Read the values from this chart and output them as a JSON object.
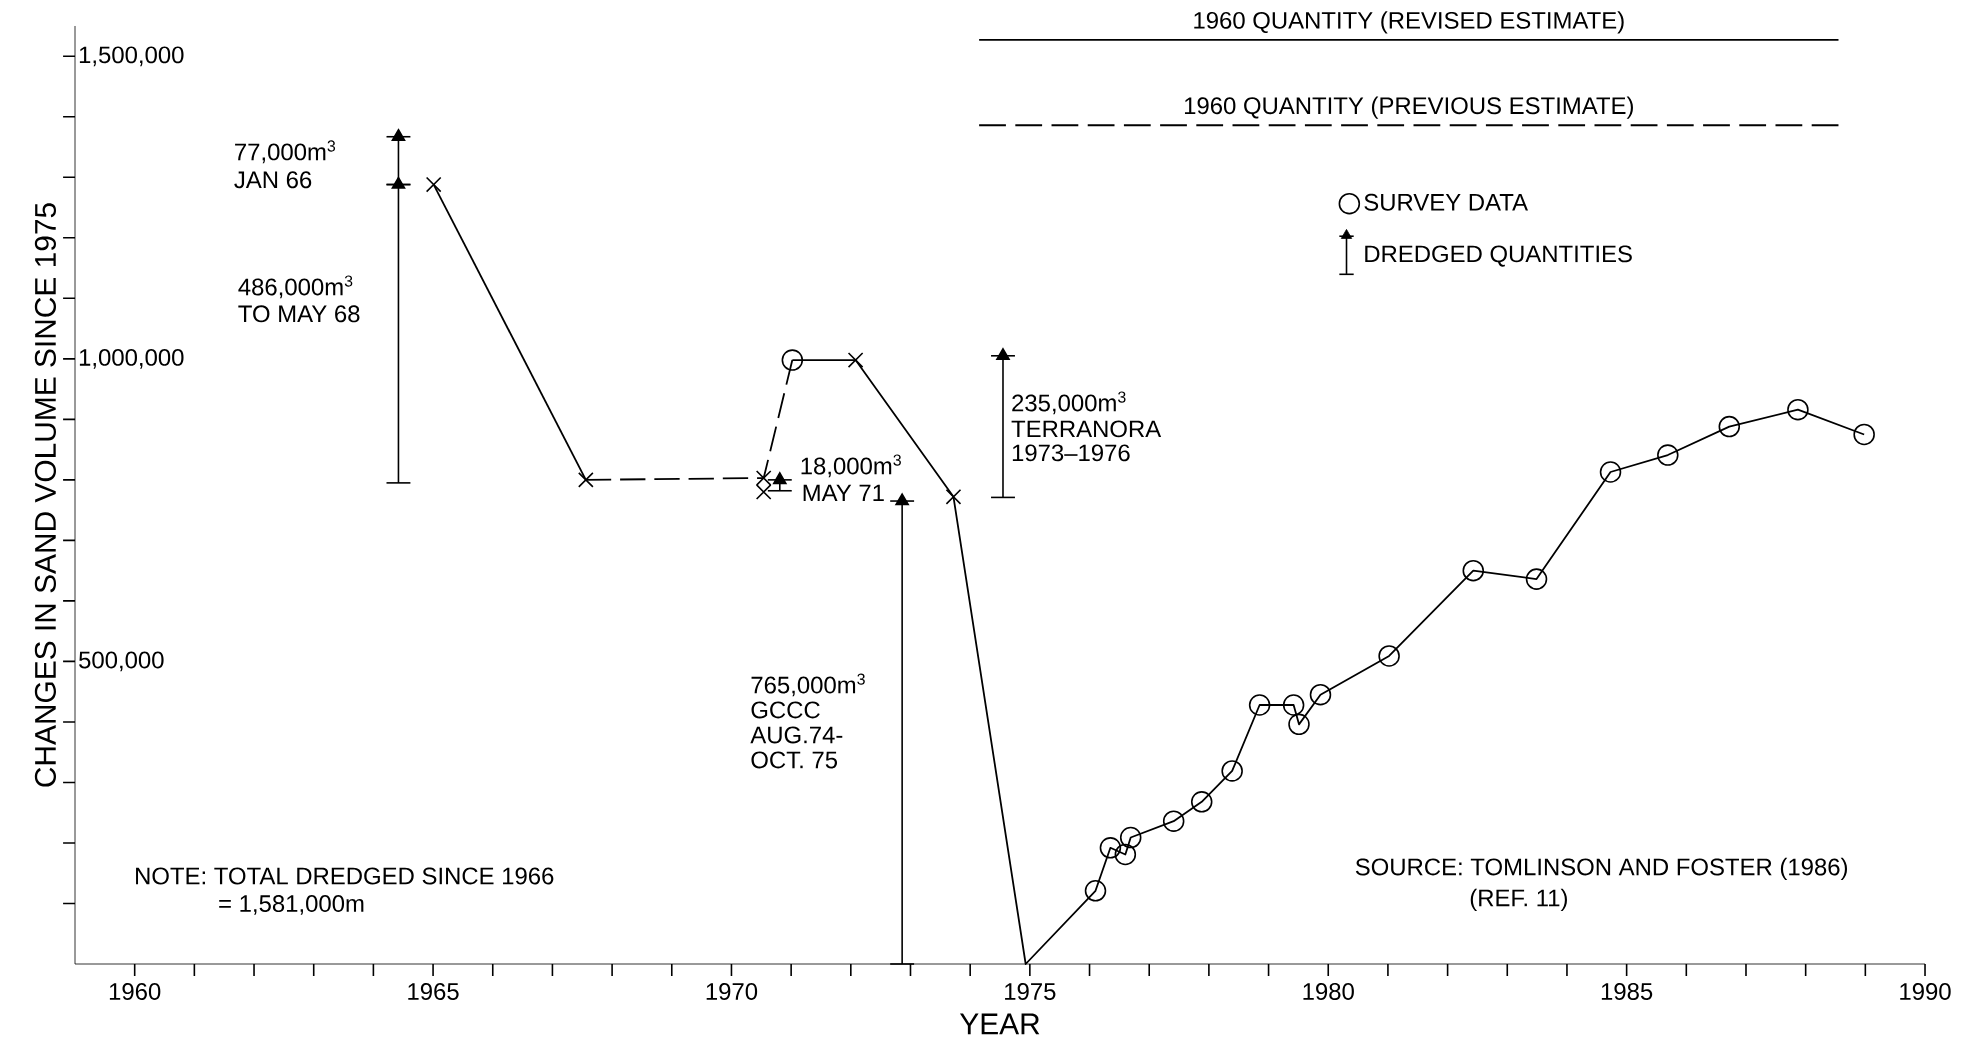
{
  "chart_data": {
    "type": "line",
    "xlabel": "YEAR",
    "ylabel": "CHANGES IN SAND VOLUME SINCE 1975",
    "xlim": [
      1959,
      1990
    ],
    "xticks": [
      1960,
      {
        "value": 1961,
        "label": null
      },
      {
        "value": 1962,
        "label": null
      },
      {
        "value": 1963,
        "label": null
      },
      {
        "value": 1964,
        "label": null
      },
      1965,
      {
        "value": 1966,
        "label": null
      },
      {
        "value": 1967,
        "label": null
      },
      {
        "value": 1968,
        "label": null
      },
      {
        "value": 1969,
        "label": null
      },
      1970,
      {
        "value": 1971,
        "label": null
      },
      {
        "value": 1972,
        "label": null
      },
      {
        "value": 1973,
        "label": null
      },
      {
        "value": 1974,
        "label": null
      },
      1975,
      {
        "value": 1976,
        "label": null
      },
      {
        "value": 1977,
        "label": null
      },
      {
        "value": 1978,
        "label": null
      },
      {
        "value": 1979,
        "label": null
      },
      1980,
      {
        "value": 1981,
        "label": null
      },
      {
        "value": 1982,
        "label": null
      },
      {
        "value": 1983,
        "label": null
      },
      {
        "value": 1984,
        "label": null
      },
      1985,
      {
        "value": 1986,
        "label": null
      },
      {
        "value": 1987,
        "label": null
      },
      {
        "value": 1988,
        "label": null
      },
      {
        "value": 1989,
        "label": null
      },
      1990
    ],
    "ylim": [
      0,
      1550000
    ],
    "yticks": [
      {
        "value": 100000,
        "label": null
      },
      {
        "value": 200000,
        "label": null
      },
      {
        "value": 300000,
        "label": null
      },
      {
        "value": 400000,
        "label": null
      },
      {
        "value": 500000,
        "label": "500,000"
      },
      {
        "value": 600000,
        "label": null
      },
      {
        "value": 700000,
        "label": null
      },
      {
        "value": 800000,
        "label": null
      },
      {
        "value": 900000,
        "label": null
      },
      {
        "value": 1000000,
        "label": "1,000,000"
      },
      {
        "value": 1100000,
        "label": null
      },
      {
        "value": 1200000,
        "label": null
      },
      {
        "value": 1300000,
        "label": null
      },
      {
        "value": 1400000,
        "label": null
      },
      {
        "value": 1500000,
        "label": "1,500,000"
      }
    ],
    "grid": false,
    "legend": "top right",
    "series": [
      {
        "color": "#000000",
        "marker": "none",
        "line_style": "solid",
        "x": [
          1965.01,
          1967.56
        ],
        "values": [
          1288000,
          800000
        ]
      },
      {
        "color": "#000000",
        "marker": "none",
        "line_style": "dashed",
        "x": [
          1967.56,
          1970.54,
          1971.02
        ],
        "values": [
          800000,
          803000,
          998000
        ]
      },
      {
        "color": "#000000",
        "marker": "none",
        "line_style": "solid",
        "x": [
          1971.02,
          1972.08,
          1973.72,
          1974.93,
          1976.1,
          1976.35,
          1976.6,
          1976.69,
          1977.41,
          1977.88,
          1978.39,
          1978.85,
          1979.42,
          1979.51,
          1979.87,
          1981.02,
          1982.43,
          1983.49,
          1984.73,
          1985.69,
          1986.72,
          1987.87,
          1988.98
        ],
        "values": [
          998000,
          998000,
          772000,
          0,
          121000,
          192000,
          181000,
          209000,
          236000,
          268000,
          319000,
          428000,
          428000,
          396000,
          445000,
          509000,
          650000,
          636000,
          813000,
          841000,
          888000,
          916000,
          875000
        ]
      },
      {
        "type": "scatter",
        "color": "#000000",
        "marker": "cross",
        "x": [
          1965.01,
          1967.56,
          1970.54,
          1970.54,
          1972.08,
          1973.72
        ],
        "values": [
          1288000,
          800000,
          803000,
          780000,
          998000,
          772000
        ]
      },
      {
        "type": "scatter",
        "name": "SURVEY DATA",
        "color": "#000000",
        "marker": "circle",
        "x": [
          1971.02,
          1976.1,
          1976.35,
          1976.6,
          1976.69,
          1977.41,
          1977.88,
          1978.39,
          1978.85,
          1979.42,
          1979.51,
          1979.87,
          1981.02,
          1982.43,
          1983.49,
          1984.73,
          1985.69,
          1986.72,
          1987.87,
          1988.98
        ],
        "values": [
          998000,
          121000,
          192000,
          181000,
          209000,
          236000,
          268000,
          319000,
          428000,
          428000,
          396000,
          445000,
          509000,
          650000,
          636000,
          813000,
          841000,
          888000,
          916000,
          875000
        ]
      },
      {
        "type": "scatter",
        "name": "DREDGED QUANTITIES",
        "color": "#000000",
        "marker": "triangle",
        "x": [
          1964.42,
          1964.42,
          1970.81,
          1972.86,
          1974.55
        ],
        "values": [
          1367000,
          1288000,
          800000,
          765000,
          1005000
        ],
        "errors": [
          [
            1288000,
            1367000
          ],
          [
            795000,
            1288000
          ],
          [
            782000,
            800000
          ],
          [
            0,
            765000
          ],
          [
            771000,
            1005000
          ]
        ]
      },
      {
        "name": "1960 QUANTITY (REVISED ESTIMATE)",
        "color": "#000000",
        "marker": "none",
        "line_style": "solid",
        "x": [
          1974.15,
          1988.55
        ],
        "values": [
          1527000,
          1527000
        ]
      },
      {
        "name": "1960 QUANTITY (PREVIOUS ESTIMATE)",
        "color": "#000000",
        "marker": "none",
        "line_style": "dashed",
        "x": [
          1974.15,
          1988.55
        ],
        "values": [
          1386000,
          1386000
        ]
      }
    ],
    "annotations": [
      "77,000m$^{3}$",
      "JAN 66",
      "486,000m$^{3}$",
      "TO MAY 68",
      "18,000m$^{3}$",
      "MAY 71",
      "765,000m$^{3}$",
      "GCCC",
      "AUG.74-",
      "OCT. 75",
      "235,000m$^{3}$",
      "TERRANORA",
      "1973–1976",
      "NOTE: TOTAL DREDGED SINCE 1966",
      "= 1,581,000m",
      "SOURCE: TOMLINSON AND FOSTER (1986)",
      "(REF. 11)"
    ]
  }
}
